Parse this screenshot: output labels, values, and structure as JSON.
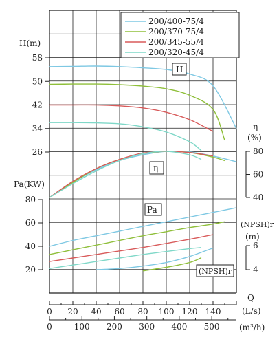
{
  "chart_data": {
    "type": "line",
    "legend": {
      "placement": "top-right",
      "items": [
        {
          "name": "200/400-75/4",
          "color": "#7ec8e3"
        },
        {
          "name": "200/370-75/4",
          "color": "#8fbf3a"
        },
        {
          "name": "200/345-55/4",
          "color": "#d85a5a"
        },
        {
          "name": "200/320-45/4",
          "color": "#7fd8c8"
        }
      ]
    },
    "axes": {
      "h_label": "H(m)",
      "h_ticks": [
        "58",
        "50",
        "42",
        "34",
        "26"
      ],
      "h_range": [
        26,
        58
      ],
      "eff_label": "η",
      "eff_unit": "(%)",
      "eff_ticks": [
        "80",
        "60",
        "40"
      ],
      "eff_range": [
        40,
        80
      ],
      "pa_label": "Pa(KW)",
      "pa_ticks": [
        "80",
        "60",
        "40",
        "20"
      ],
      "pa_range": [
        20,
        80
      ],
      "npsh_label": "(NPSH)r",
      "npsh_unit": "(m)",
      "npsh_ticks": [
        "6",
        "4"
      ],
      "npsh_range": [
        4,
        6
      ],
      "q_label": "Q",
      "q_ls_unit": "(L/s)",
      "q_ls_ticks": [
        "0",
        "20",
        "40",
        "60",
        "80",
        "100",
        "120",
        "140"
      ],
      "q_ls_range": [
        0,
        160
      ],
      "q_m3h_unit": "(m³/h)",
      "q_m3h_ticks": [
        "0",
        "100",
        "200",
        "300",
        "400",
        "500"
      ],
      "q_m3h_range": [
        0,
        576
      ]
    },
    "labels": {
      "h": "H",
      "eta": "η",
      "pa": "Pa",
      "npsh": "(NPSH)r"
    },
    "grid": true,
    "series": [
      {
        "name": "200/400-75/4",
        "color": "#7ec8e3",
        "H": [
          [
            0,
            55
          ],
          [
            20,
            55.1
          ],
          [
            40,
            55.2
          ],
          [
            60,
            55
          ],
          [
            80,
            54.6
          ],
          [
            100,
            54
          ],
          [
            120,
            52.5
          ],
          [
            140,
            48.5
          ],
          [
            160,
            34
          ]
        ],
        "eta": [
          [
            0,
            40
          ],
          [
            20,
            53
          ],
          [
            40,
            64
          ],
          [
            60,
            72
          ],
          [
            80,
            77
          ],
          [
            100,
            80
          ],
          [
            120,
            79.5
          ],
          [
            140,
            76
          ],
          [
            160,
            71
          ]
        ],
        "Pa": [
          [
            0,
            40
          ],
          [
            20,
            45
          ],
          [
            40,
            49
          ],
          [
            60,
            53
          ],
          [
            80,
            57
          ],
          [
            100,
            61
          ],
          [
            120,
            65
          ],
          [
            140,
            69
          ],
          [
            160,
            73
          ]
        ],
        "npsh": [
          [
            40,
            4
          ],
          [
            60,
            4.1
          ],
          [
            80,
            4.3
          ],
          [
            100,
            4.6
          ],
          [
            120,
            5.1
          ],
          [
            140,
            5.8
          ]
        ]
      },
      {
        "name": "200/370-75/4",
        "color": "#8fbf3a",
        "H": [
          [
            0,
            49
          ],
          [
            20,
            49.1
          ],
          [
            40,
            49.1
          ],
          [
            60,
            48.9
          ],
          [
            80,
            48.4
          ],
          [
            100,
            47.5
          ],
          [
            120,
            45.3
          ],
          [
            140,
            40.5
          ],
          [
            150,
            30
          ]
        ],
        "eta": [
          [
            0,
            40
          ],
          [
            20,
            53
          ],
          [
            40,
            65
          ],
          [
            60,
            73
          ],
          [
            80,
            78
          ],
          [
            100,
            80
          ],
          [
            120,
            79
          ],
          [
            140,
            75
          ],
          [
            150,
            72
          ]
        ],
        "Pa": [
          [
            0,
            33
          ],
          [
            20,
            37
          ],
          [
            40,
            41
          ],
          [
            60,
            45
          ],
          [
            80,
            49
          ],
          [
            100,
            52.5
          ],
          [
            120,
            56
          ],
          [
            140,
            59
          ],
          [
            150,
            61
          ]
        ],
        "npsh": [
          [
            80,
            3.9
          ],
          [
            100,
            4.2
          ],
          [
            120,
            4.6
          ],
          [
            130,
            5
          ]
        ]
      },
      {
        "name": "200/345-55/4",
        "color": "#d85a5a",
        "H": [
          [
            0,
            42
          ],
          [
            20,
            42
          ],
          [
            40,
            42
          ],
          [
            60,
            41.7
          ],
          [
            80,
            41
          ],
          [
            100,
            39.5
          ],
          [
            120,
            37
          ],
          [
            140,
            33
          ]
        ],
        "eta": [
          [
            0,
            40
          ],
          [
            20,
            54
          ],
          [
            40,
            65
          ],
          [
            60,
            73
          ],
          [
            80,
            78.5
          ],
          [
            100,
            80
          ],
          [
            120,
            79
          ],
          [
            140,
            76
          ]
        ],
        "Pa": [
          [
            0,
            27
          ],
          [
            20,
            30
          ],
          [
            40,
            33
          ],
          [
            60,
            36
          ],
          [
            80,
            39
          ],
          [
            100,
            42.5
          ],
          [
            120,
            46
          ],
          [
            140,
            50
          ]
        ],
        "npsh": []
      },
      {
        "name": "200/320-45/4",
        "color": "#7fd8c8",
        "H": [
          [
            0,
            36
          ],
          [
            20,
            36
          ],
          [
            40,
            35.9
          ],
          [
            60,
            35.6
          ],
          [
            80,
            34.6
          ],
          [
            100,
            32.8
          ],
          [
            120,
            29.5
          ],
          [
            130,
            26.5
          ]
        ],
        "eta": [
          [
            0,
            40
          ],
          [
            20,
            52
          ],
          [
            40,
            63
          ],
          [
            60,
            72
          ],
          [
            80,
            78
          ],
          [
            100,
            80
          ],
          [
            120,
            77
          ],
          [
            130,
            73
          ]
        ],
        "Pa": [
          [
            0,
            21
          ],
          [
            20,
            24
          ],
          [
            40,
            27
          ],
          [
            60,
            30
          ],
          [
            80,
            33
          ],
          [
            100,
            35.5
          ],
          [
            120,
            38
          ],
          [
            130,
            39
          ]
        ],
        "npsh": []
      }
    ]
  }
}
